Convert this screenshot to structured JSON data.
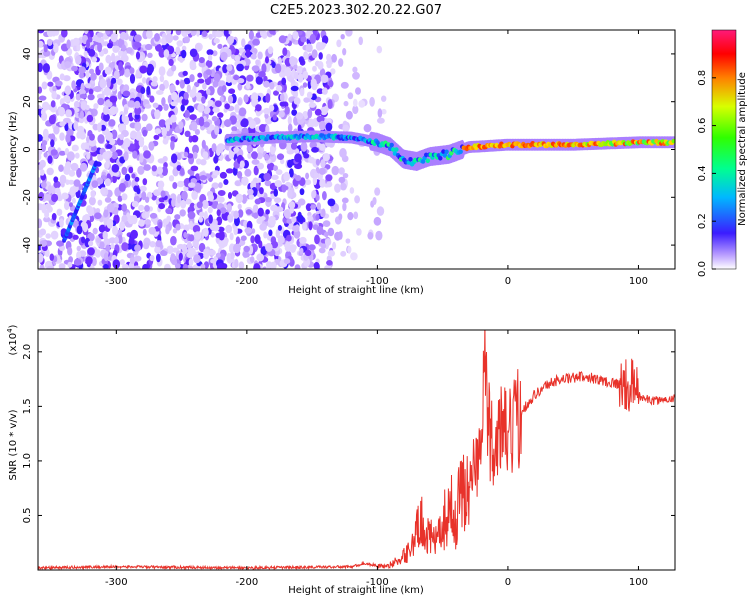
{
  "title": "C2E5.2023.302.20.22.G07",
  "colors": {
    "snr_line": "#e8322a",
    "spectrum_low": "#6a00ff",
    "spectrum_high": "#ff0000"
  },
  "chart_data": [
    {
      "type": "heatmap",
      "xlabel": "Height of straight line (km)",
      "ylabel": "Frequency (Hz)",
      "xlim": [
        -360,
        128
      ],
      "ylim": [
        -50,
        50
      ],
      "xticks": [
        -300,
        -200,
        -100,
        0,
        100
      ],
      "yticks": [
        -40,
        -20,
        0,
        20,
        40
      ],
      "colorbar": {
        "label": "Normalized spectral amplitude",
        "range": [
          0.0,
          1.0
        ],
        "ticks": [
          "0.0",
          "0.2",
          "0.4",
          "0.6",
          "0.8"
        ],
        "colormap": "purple-blue-cyan-green-yellow-red"
      },
      "ridge_frequency_hz": [
        {
          "x": -210,
          "y": 4
        },
        {
          "x": -180,
          "y": 5
        },
        {
          "x": -150,
          "y": 5.5
        },
        {
          "x": -120,
          "y": 5
        },
        {
          "x": -100,
          "y": 3
        },
        {
          "x": -90,
          "y": 1
        },
        {
          "x": -80,
          "y": -4
        },
        {
          "x": -70,
          "y": -5
        },
        {
          "x": -60,
          "y": -3
        },
        {
          "x": -45,
          "y": -2
        },
        {
          "x": -30,
          "y": 1
        },
        {
          "x": 0,
          "y": 2
        },
        {
          "x": 50,
          "y": 2
        },
        {
          "x": 100,
          "y": 3
        },
        {
          "x": 128,
          "y": 3
        }
      ],
      "streak": {
        "x_start": -340,
        "y_start": -38,
        "x_end": -315,
        "y_end": -5
      }
    },
    {
      "type": "line",
      "xlabel": "Height of straight line (km)",
      "ylabel": "SNR (10 * v/v)",
      "y_multiplier": "(x10^4)",
      "xlim": [
        -360,
        128
      ],
      "ylim": [
        0,
        2.2
      ],
      "xticks": [
        -300,
        -200,
        -100,
        0,
        100
      ],
      "yticks": [
        0.5,
        1.0,
        1.5,
        2.0
      ],
      "series": [
        {
          "x": [
            -360,
            -300,
            -200,
            -120,
            -110,
            -100,
            -95,
            -90,
            -85,
            -80,
            -75,
            -70,
            -65,
            -60,
            -55,
            -50,
            -45,
            -40,
            -35,
            -30,
            -25,
            -20,
            -18,
            -15,
            -10,
            -5,
            0,
            10,
            20,
            30,
            40,
            50,
            60,
            70,
            80,
            90,
            95,
            100,
            110,
            120,
            128
          ],
          "y": [
            0.02,
            0.03,
            0.02,
            0.03,
            0.06,
            0.04,
            0.03,
            0.05,
            0.08,
            0.12,
            0.2,
            0.35,
            0.45,
            0.3,
            0.25,
            0.4,
            0.6,
            0.45,
            0.8,
            0.7,
            1.0,
            1.1,
            2.1,
            1.3,
            1.1,
            1.3,
            1.2,
            1.45,
            1.6,
            1.7,
            1.75,
            1.76,
            1.78,
            1.74,
            1.72,
            1.68,
            1.7,
            1.6,
            1.55,
            1.56,
            1.58
          ]
        }
      ]
    }
  ]
}
